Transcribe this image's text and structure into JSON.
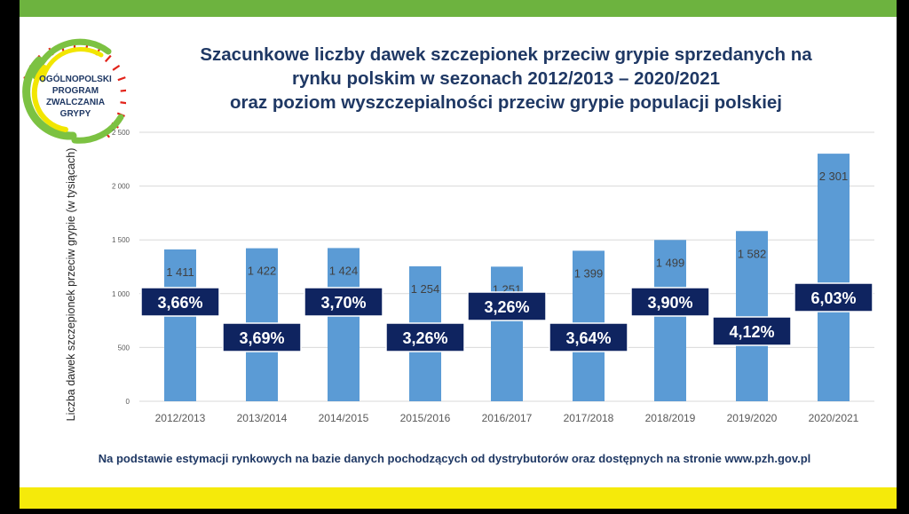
{
  "logo": {
    "lines": [
      "OGÓLNOPOLSKI",
      "PROGRAM",
      "ZWALCZANIA",
      "GRYPY"
    ],
    "colors": {
      "ring_inner": "#f2e600",
      "ring_outer": "#7cc242",
      "spikes": "#e2231a",
      "text": "#1f3864"
    }
  },
  "title": {
    "line1": "Szacunkowe liczby dawek szczepionek przeciw grypie sprzedanych na",
    "line2": "rynku polskim w sezonach 2012/2013 – 2020/2021",
    "line3": "oraz poziom wyszczepialności przeciw grypie populacji polskiej"
  },
  "footnote": "Na podstawie estymacji rynkowych na bazie danych pochodzących od dystrybutorów oraz dostępnych na stronie www.pzh.gov.pl",
  "colors": {
    "bar": "#5b9bd5",
    "badge_bg": "#0f2460",
    "badge_text": "#ffffff",
    "label": "#404040",
    "axis_text": "#595959",
    "grid": "#d9d9d9",
    "band_top": "#6db33f",
    "band_bottom": "#f5ea0a"
  },
  "chart_data": {
    "type": "bar",
    "ylabel": "Liczba dawek szczepionek przeciw grypie (w tysiącach)",
    "ylim": [
      0,
      2500
    ],
    "yticks": [
      0,
      500,
      1000,
      1500,
      2000,
      2500
    ],
    "ytick_labels": [
      "0",
      "500",
      "1 000",
      "1 500",
      "2 000",
      "2 500"
    ],
    "grid": true,
    "categories": [
      "2012/2013",
      "2013/2014",
      "2014/2015",
      "2015/2016",
      "2016/2017",
      "2017/2018",
      "2018/2019",
      "2019/2020",
      "2020/2021"
    ],
    "values": [
      1411,
      1422,
      1424,
      1254,
      1251,
      1399,
      1499,
      1582,
      2301
    ],
    "value_labels": [
      "1 411",
      "1 422",
      "1 424",
      "1 254",
      "1 251",
      "1 399",
      "1 499",
      "1 582",
      "2 301"
    ],
    "vaccination_rates": [
      "3,66%",
      "3,69%",
      "3,70%",
      "3,26%",
      "3,26%",
      "3,64%",
      "3,90%",
      "4,12%",
      "6,03%"
    ]
  }
}
